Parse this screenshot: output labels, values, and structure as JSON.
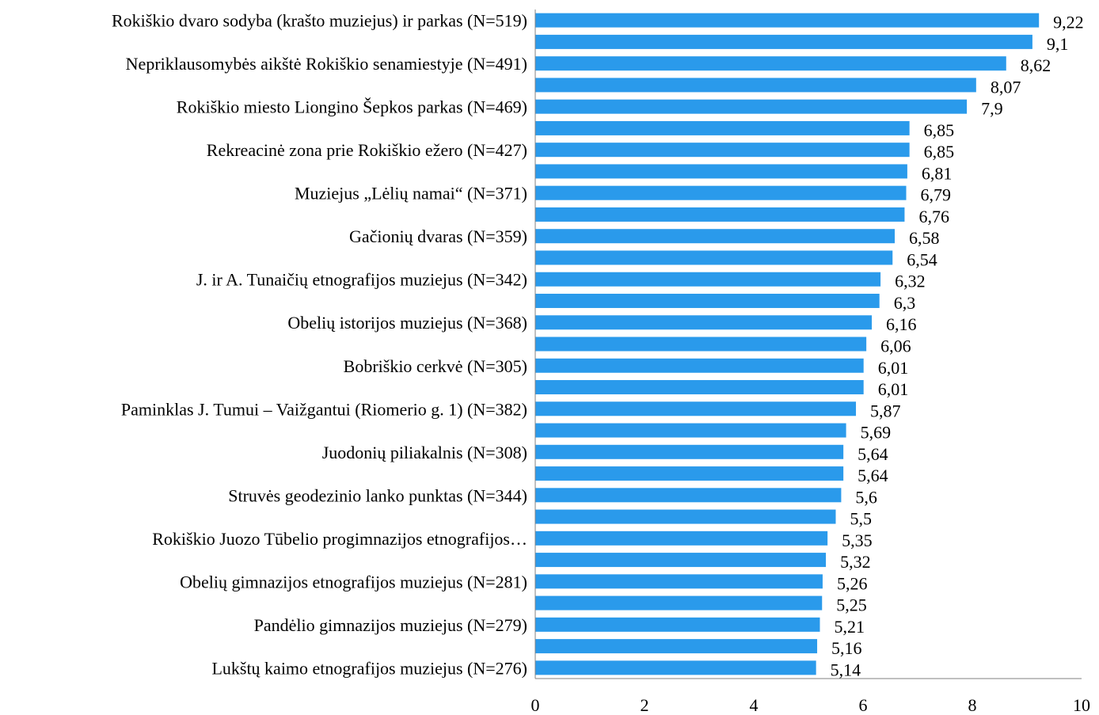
{
  "chart_data": {
    "type": "bar",
    "orientation": "horizontal",
    "categories": [
      "Rokiškio dvaro sodyba (krašto muziejus) ir parkas (N=519)",
      "",
      "Nepriklausomybės aikštė Rokiškio senamiestyje (N=491)",
      "",
      "Rokiškio miesto Liongino Šepkos parkas (N=469)",
      "",
      "Rekreacinė zona prie Rokiškio ežero (N=427)",
      "",
      "Muziejus „Lėlių namai“ (N=371)",
      "",
      "Gačionių dvaras (N=359)",
      "",
      "J. ir A. Tunaičių etnografijos muziejus (N=342)",
      "",
      "Obelių istorijos muziejus (N=368)",
      "",
      "Bobriškio cerkvė (N=305)",
      "",
      "Paminklas J. Tumui – Vaižgantui (Riomerio g. 1) (N=382)",
      "",
      "Juodonių piliakalnis (N=308)",
      "",
      "Struvės geodezinio lanko punktas (N=344)",
      "",
      "Rokiškio Juozo Tūbelio progimnazijos etnografijos…",
      "",
      "Obelių gimnazijos etnografijos muziejus (N=281)",
      "",
      "Pandėlio gimnazijos muziejus (N=279)",
      "",
      "Lukštų kaimo etnografijos muziejus (N=276)"
    ],
    "values": [
      9.22,
      9.1,
      8.62,
      8.07,
      7.9,
      6.85,
      6.85,
      6.81,
      6.79,
      6.76,
      6.58,
      6.54,
      6.32,
      6.3,
      6.16,
      6.06,
      6.01,
      6.01,
      5.87,
      5.69,
      5.64,
      5.64,
      5.6,
      5.5,
      5.35,
      5.32,
      5.26,
      5.25,
      5.21,
      5.16,
      5.14
    ],
    "value_labels": [
      "9,22",
      "9,1",
      "8,62",
      "8,07",
      "7,9",
      "6,85",
      "6,85",
      "6,81",
      "6,79",
      "6,76",
      "6,58",
      "6,54",
      "6,32",
      "6,3",
      "6,16",
      "6,06",
      "6,01",
      "6,01",
      "5,87",
      "5,69",
      "5,64",
      "5,64",
      "5,6",
      "5,5",
      "5,35",
      "5,32",
      "5,26",
      "5,25",
      "5,21",
      "5,16",
      "5,14"
    ],
    "xlim": [
      0,
      10
    ],
    "x_ticks": [
      "0",
      "2",
      "4",
      "6",
      "8",
      "10"
    ],
    "title": "",
    "xlabel": "",
    "ylabel": "",
    "grid": false,
    "bar_color": "#2a9aeb",
    "axis_color": "#808080"
  }
}
